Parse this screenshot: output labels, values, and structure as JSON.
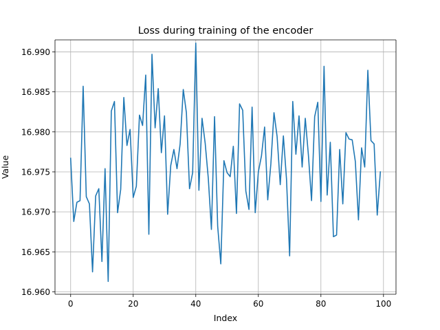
{
  "chart_data": {
    "type": "line",
    "title": "Loss during training of the encoder",
    "xlabel": "Index",
    "ylabel": "Value",
    "xlim": [
      -5,
      104
    ],
    "ylim": [
      16.9597,
      16.9915
    ],
    "xticks": [
      0,
      20,
      40,
      60,
      80,
      100
    ],
    "yticks": [
      16.96,
      16.965,
      16.97,
      16.975,
      16.98,
      16.985,
      16.99
    ],
    "ytick_labels": [
      "16.960",
      "16.965",
      "16.970",
      "16.975",
      "16.980",
      "16.985",
      "16.990"
    ],
    "grid": true,
    "legend": false,
    "line_color": "#1f77b4",
    "x_start": 0,
    "x_step": 1,
    "values": [
      16.9767,
      16.9688,
      16.9712,
      16.9714,
      16.9857,
      16.9719,
      16.971,
      16.9625,
      16.972,
      16.9729,
      16.9638,
      16.9754,
      16.9613,
      16.9826,
      16.9838,
      16.9699,
      16.9728,
      16.9843,
      16.9783,
      16.9803,
      16.9718,
      16.9732,
      16.9821,
      16.9808,
      16.9871,
      16.9672,
      16.9897,
      16.9805,
      16.9854,
      16.9774,
      16.982,
      16.9697,
      16.9758,
      16.9778,
      16.9754,
      16.9785,
      16.9853,
      16.9824,
      16.9729,
      16.9749,
      16.9911,
      16.9727,
      16.9817,
      16.9786,
      16.9742,
      16.9678,
      16.9819,
      16.9682,
      16.9635,
      16.9764,
      16.9749,
      16.9744,
      16.9782,
      16.9698,
      16.9835,
      16.9827,
      16.9726,
      16.9703,
      16.9831,
      16.9699,
      16.975,
      16.977,
      16.9806,
      16.9715,
      16.976,
      16.9824,
      16.9794,
      16.9734,
      16.9795,
      16.9741,
      16.9645,
      16.9838,
      16.9772,
      16.982,
      16.9756,
      16.9817,
      16.9771,
      16.9714,
      16.9819,
      16.9837,
      16.9713,
      16.9882,
      16.9721,
      16.9787,
      16.9669,
      16.9671,
      16.9778,
      16.971,
      16.9799,
      16.9791,
      16.979,
      16.9763,
      16.969,
      16.978,
      16.9756,
      16.9877,
      16.9789,
      16.9785,
      16.9696,
      16.975
    ]
  }
}
